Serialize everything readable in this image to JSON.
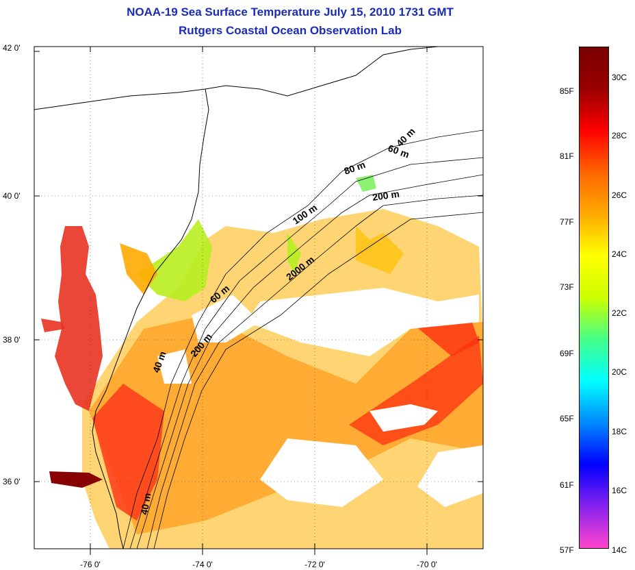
{
  "title": {
    "line1": "NOAA-19 Sea Surface Temperature July 15, 2010 1731 GMT",
    "line2": "Rutgers Coastal Ocean Observation Lab"
  },
  "axes": {
    "lat_ticks": [
      {
        "value": 42,
        "label": "42 0'"
      },
      {
        "value": 40,
        "label": "40 0'"
      },
      {
        "value": 38,
        "label": "38 0'"
      },
      {
        "value": 36,
        "label": "36 0'"
      }
    ],
    "lon_ticks": [
      {
        "value": -76,
        "label": "-76 0'"
      },
      {
        "value": -74,
        "label": "-74 0'"
      },
      {
        "value": -72,
        "label": "-72 0'"
      },
      {
        "value": -70,
        "label": "-70 0'"
      }
    ]
  },
  "depth_labels": [
    {
      "text": "40 m"
    },
    {
      "text": "60 m"
    },
    {
      "text": "80 m"
    },
    {
      "text": "200 m"
    },
    {
      "text": "100 m"
    },
    {
      "text": "2000 m"
    },
    {
      "text": "60 m"
    },
    {
      "text": "40 m"
    },
    {
      "text": "200 m"
    },
    {
      "text": "40 m"
    }
  ],
  "colorbar": {
    "fahrenheit": [
      "85F",
      "81F",
      "77F",
      "73F",
      "69F",
      "65F",
      "61F",
      "57F"
    ],
    "celsius": [
      "30C",
      "28C",
      "26C",
      "24C",
      "22C",
      "20C",
      "18C",
      "16C",
      "14C"
    ],
    "colors": [
      "#ff44cc",
      "#8822ee",
      "#0000ff",
      "#0088ff",
      "#00ffff",
      "#44ff88",
      "#ccff00",
      "#ffff00",
      "#ffaa00",
      "#ff6600",
      "#ff0000",
      "#990000",
      "#7a0000"
    ]
  }
}
